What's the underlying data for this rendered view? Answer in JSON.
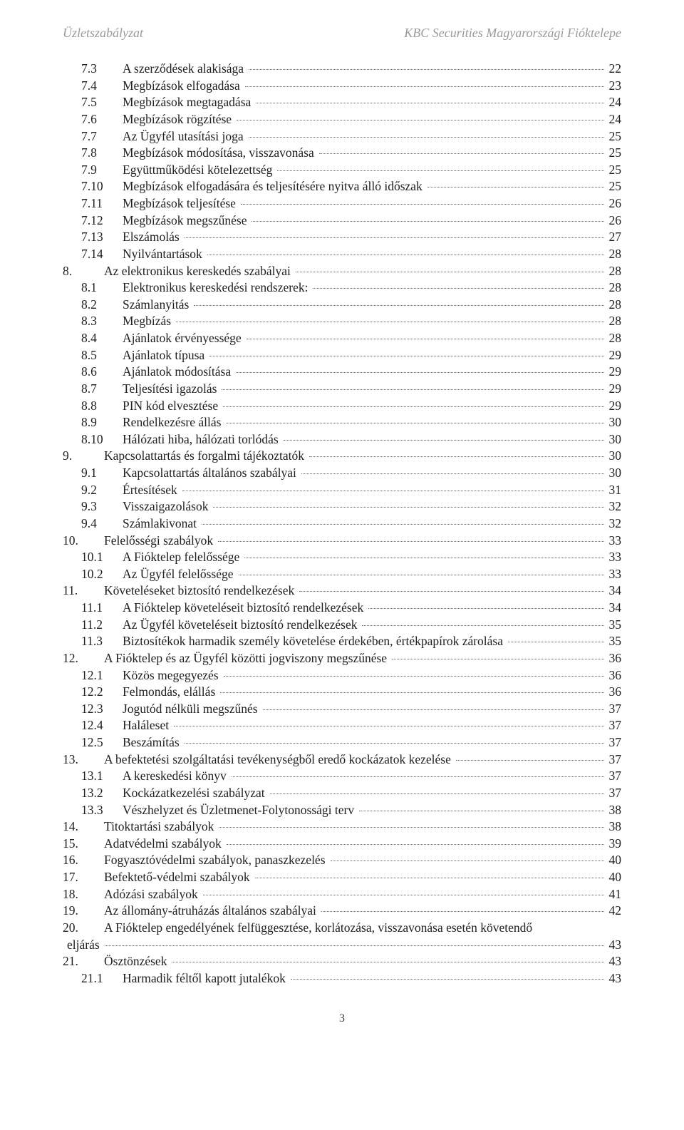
{
  "header": {
    "left": "Üzletszabályzat",
    "right": "KBC Securities Magyarországi Fióktelepe"
  },
  "footer": {
    "page_number": "3"
  },
  "style": {
    "background_color": "#ffffff",
    "text_color": "#202020",
    "header_color": "#9a9a9a",
    "font_family": "Garamond, 'Times New Roman', serif",
    "body_fontsize_pt": 13,
    "header_fontsize_pt": 13
  },
  "toc": [
    {
      "num": "7.3",
      "title": "A szerződések alakisága",
      "page": "22",
      "indent": 1
    },
    {
      "num": "7.4",
      "title": "Megbízások elfogadása",
      "page": "23",
      "indent": 1
    },
    {
      "num": "7.5",
      "title": "Megbízások megtagadása",
      "page": "24",
      "indent": 1
    },
    {
      "num": "7.6",
      "title": "Megbízások rögzítése",
      "page": "24",
      "indent": 1
    },
    {
      "num": "7.7",
      "title": "Az Ügyfél utasítási joga",
      "page": "25",
      "indent": 1
    },
    {
      "num": "7.8",
      "title": "Megbízások módosítása, visszavonása",
      "page": "25",
      "indent": 1
    },
    {
      "num": "7.9",
      "title": "Együttműködési kötelezettség",
      "page": "25",
      "indent": 1
    },
    {
      "num": "7.10",
      "title": "Megbízások elfogadására és teljesítésére nyitva álló időszak",
      "page": "25",
      "indent": 1
    },
    {
      "num": "7.11",
      "title": "Megbízások teljesítése",
      "page": "26",
      "indent": 1
    },
    {
      "num": "7.12",
      "title": "Megbízások megszűnése",
      "page": "26",
      "indent": 1
    },
    {
      "num": "7.13",
      "title": "Elszámolás",
      "page": "27",
      "indent": 1
    },
    {
      "num": "7.14",
      "title": "Nyilvántartások",
      "page": "28",
      "indent": 1
    },
    {
      "num": "8.",
      "title": "Az elektronikus kereskedés szabályai",
      "page": "28",
      "indent": 0
    },
    {
      "num": "8.1",
      "title": "Elektronikus kereskedési rendszerek:",
      "page": "28",
      "indent": 1
    },
    {
      "num": "8.2",
      "title": "Számlanyitás",
      "page": "28",
      "indent": 1
    },
    {
      "num": "8.3",
      "title": "Megbízás",
      "page": "28",
      "indent": 1
    },
    {
      "num": "8.4",
      "title": "Ajánlatok érvényessége",
      "page": "28",
      "indent": 1
    },
    {
      "num": "8.5",
      "title": "Ajánlatok típusa",
      "page": "29",
      "indent": 1
    },
    {
      "num": "8.6",
      "title": "Ajánlatok módosítása",
      "page": "29",
      "indent": 1
    },
    {
      "num": "8.7",
      "title": "Teljesítési igazolás",
      "page": "29",
      "indent": 1
    },
    {
      "num": "8.8",
      "title": "PIN kód elvesztése",
      "page": "29",
      "indent": 1
    },
    {
      "num": "8.9",
      "title": "Rendelkezésre állás",
      "page": "30",
      "indent": 1
    },
    {
      "num": "8.10",
      "title": "Hálózati hiba, hálózati torlódás",
      "page": "30",
      "indent": 1
    },
    {
      "num": "9.",
      "title": "Kapcsolattartás és forgalmi tájékoztatók",
      "page": "30",
      "indent": 0
    },
    {
      "num": "9.1",
      "title": "Kapcsolattartás általános szabályai",
      "page": "30",
      "indent": 1
    },
    {
      "num": "9.2",
      "title": "Értesítések",
      "page": "31",
      "indent": 1
    },
    {
      "num": "9.3",
      "title": "Visszaigazolások",
      "page": "32",
      "indent": 1
    },
    {
      "num": "9.4",
      "title": "Számlakivonat",
      "page": "32",
      "indent": 1
    },
    {
      "num": "10.",
      "title": "Felelősségi szabályok",
      "page": "33",
      "indent": 0
    },
    {
      "num": "10.1",
      "title": "A Fióktelep felelőssége",
      "page": "33",
      "indent": 1
    },
    {
      "num": "10.2",
      "title": "Az Ügyfél felelőssége",
      "page": "33",
      "indent": 1
    },
    {
      "num": "11.",
      "title": "Követeléseket biztosító rendelkezések",
      "page": "34",
      "indent": 0
    },
    {
      "num": "11.1",
      "title": "A Fióktelep követeléseit biztosító rendelkezések",
      "page": "34",
      "indent": 1
    },
    {
      "num": "11.2",
      "title": "Az Ügyfél követeléseit biztosító rendelkezések",
      "page": "35",
      "indent": 1
    },
    {
      "num": "11.3",
      "title": "Biztosítékok harmadik személy követelése érdekében, értékpapírok zárolása",
      "page": "35",
      "indent": 1
    },
    {
      "num": "12.",
      "title": "A Fióktelep és az Ügyfél közötti jogviszony megszűnése",
      "page": "36",
      "indent": 0
    },
    {
      "num": "12.1",
      "title": "Közös megegyezés",
      "page": "36",
      "indent": 1
    },
    {
      "num": "12.2",
      "title": "Felmondás, elállás",
      "page": "36",
      "indent": 1
    },
    {
      "num": "12.3",
      "title": "Jogutód nélküli megszűnés",
      "page": "37",
      "indent": 1
    },
    {
      "num": "12.4",
      "title": "Haláleset",
      "page": "37",
      "indent": 1
    },
    {
      "num": "12.5",
      "title": "Beszámítás",
      "page": "37",
      "indent": 1
    },
    {
      "num": "13.",
      "title": "A befektetési szolgáltatási tevékenységből eredő kockázatok kezelése",
      "page": "37",
      "indent": 0
    },
    {
      "num": "13.1",
      "title": "A kereskedési könyv",
      "page": "37",
      "indent": 1
    },
    {
      "num": "13.2",
      "title": "Kockázatkezelési szabályzat",
      "page": "37",
      "indent": 1
    },
    {
      "num": "13.3",
      "title": "Vészhelyzet és Üzletmenet-Folytonossági terv",
      "page": "38",
      "indent": 1
    },
    {
      "num": "14.",
      "title": "Titoktartási szabályok",
      "page": "38",
      "indent": 0
    },
    {
      "num": "15.",
      "title": "Adatvédelmi szabályok",
      "page": "39",
      "indent": 0
    },
    {
      "num": "16.",
      "title": "Fogyasztóvédelmi szabályok, panaszkezelés",
      "page": "40",
      "indent": 0
    },
    {
      "num": "17.",
      "title": "Befektető-védelmi szabályok",
      "page": "40",
      "indent": 0
    },
    {
      "num": "18.",
      "title": "Adózási szabályok",
      "page": "41",
      "indent": 0
    },
    {
      "num": "19.",
      "title": "Az állomány-átruházás általános szabályai",
      "page": "42",
      "indent": 0
    },
    {
      "num": "20.",
      "title": "A Fióktelep engedélyének felfüggesztése, korlátozása, visszavonása esetén követendő",
      "page": "",
      "indent": 0,
      "wrap": true
    },
    {
      "num": "",
      "title": "eljárás",
      "page": "43",
      "indent": 0,
      "wrapcont": true
    },
    {
      "num": "21.",
      "title": "Ösztönzések",
      "page": "43",
      "indent": 0
    },
    {
      "num": "21.1",
      "title": "Harmadik féltől kapott jutalékok",
      "page": "43",
      "indent": 1
    }
  ]
}
